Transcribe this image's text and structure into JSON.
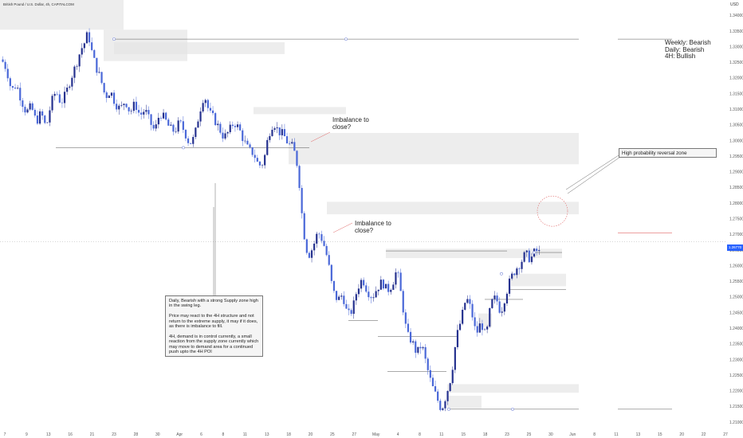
{
  "header": {
    "symbol_line": "British Pound / U.S. Dollar, 4h, CAPITALCOM"
  },
  "currency_label": "USD",
  "current_price": "1.26770",
  "bias_text": "Weekly: Bearish\nDaily: Bearish\n4H: Bullish",
  "imbalance_label_1": "Imbalance to\nclose?",
  "imbalance_label_2": "Imbalance to\nclose?",
  "reversal_label": "High probability reversal zone",
  "analysis_note": "Daily, Bearish with a strong Supply zone high in the swing leg.\n\nPrice may react to the 4H structure and not return to the extreme supply, it may if it does, as there is imbalance to fill.\n\n4H, demand is in control currently, a small reaction from the supply zone currently which may move to demand area for a continued push upto the 4H POI",
  "colors": {
    "up": "#26328f",
    "down": "#4a68d8",
    "zone": "#e4e4e4",
    "circle": "#e06666",
    "accent": "#2962ff"
  },
  "chart_data": {
    "type": "candlestick",
    "title": "British Pound / U.S. Dollar, 4h, CAPITALCOM",
    "ylim": [
      1.205,
      1.345
    ],
    "y_ticks": [
      "1.34000",
      "1.33500",
      "1.33000",
      "1.32500",
      "1.32000",
      "1.31500",
      "1.31000",
      "1.30500",
      "1.30000",
      "1.29500",
      "1.29000",
      "1.28500",
      "1.28000",
      "1.27500",
      "1.27000",
      "1.26500",
      "1.26000",
      "1.25500",
      "1.25000",
      "1.24500",
      "1.24000",
      "1.23500",
      "1.23000",
      "1.22500",
      "1.22000",
      "1.21500",
      "1.21000"
    ],
    "x_ticks": [
      "7",
      "9",
      "13",
      "16",
      "21",
      "23",
      "28",
      "30",
      "Apr",
      "6",
      "8",
      "11",
      "13",
      "18",
      "20",
      "25",
      "27",
      "May",
      "4",
      "8",
      "11",
      "15",
      "18",
      "23",
      "25",
      "30",
      "Jun",
      "8",
      "11",
      "13",
      "15",
      "20",
      "22",
      "27"
    ],
    "close_path": [
      [
        0,
        1.326
      ],
      [
        4,
        1.323
      ],
      [
        8,
        1.316
      ],
      [
        12,
        1.318
      ],
      [
        16,
        1.313
      ],
      [
        20,
        1.309
      ],
      [
        24,
        1.311
      ],
      [
        28,
        1.306
      ],
      [
        32,
        1.309
      ],
      [
        36,
        1.304
      ],
      [
        40,
        1.312
      ],
      [
        44,
        1.316
      ],
      [
        48,
        1.312
      ],
      [
        52,
        1.315
      ],
      [
        56,
        1.32
      ],
      [
        60,
        1.324
      ],
      [
        64,
        1.329
      ],
      [
        68,
        1.332
      ],
      [
        70,
        1.335
      ],
      [
        72,
        1.33
      ],
      [
        76,
        1.324
      ],
      [
        80,
        1.32
      ],
      [
        84,
        1.314
      ],
      [
        88,
        1.316
      ],
      [
        92,
        1.312
      ],
      [
        96,
        1.31
      ],
      [
        100,
        1.313
      ],
      [
        104,
        1.309
      ],
      [
        108,
        1.312
      ],
      [
        112,
        1.308
      ],
      [
        116,
        1.31
      ],
      [
        120,
        1.306
      ],
      [
        124,
        1.303
      ],
      [
        128,
        1.309
      ],
      [
        132,
        1.307
      ],
      [
        136,
        1.304
      ],
      [
        140,
        1.303
      ],
      [
        144,
        1.306
      ],
      [
        148,
        1.303
      ],
      [
        152,
        1.299
      ],
      [
        156,
        1.301
      ],
      [
        160,
        1.309
      ],
      [
        164,
        1.315
      ],
      [
        168,
        1.309
      ],
      [
        172,
        1.307
      ],
      [
        176,
        1.304
      ],
      [
        180,
        1.301
      ],
      [
        184,
        1.303
      ],
      [
        188,
        1.306
      ],
      [
        192,
        1.304
      ],
      [
        196,
        1.3
      ],
      [
        200,
        1.297
      ],
      [
        204,
        1.296
      ],
      [
        208,
        1.292
      ],
      [
        212,
        1.293
      ],
      [
        216,
        1.302
      ],
      [
        220,
        1.306
      ],
      [
        224,
        1.303
      ],
      [
        228,
        1.302
      ],
      [
        232,
        1.299
      ],
      [
        236,
        1.298
      ],
      [
        240,
        1.291
      ],
      [
        244,
        1.272
      ],
      [
        248,
        1.263
      ],
      [
        252,
        1.266
      ],
      [
        256,
        1.271
      ],
      [
        260,
        1.268
      ],
      [
        264,
        1.262
      ],
      [
        268,
        1.252
      ],
      [
        272,
        1.249
      ],
      [
        276,
        1.251
      ],
      [
        280,
        1.244
      ],
      [
        284,
        1.246
      ],
      [
        288,
        1.253
      ],
      [
        292,
        1.256
      ],
      [
        296,
        1.252
      ],
      [
        300,
        1.25
      ],
      [
        304,
        1.253
      ],
      [
        308,
        1.255
      ],
      [
        312,
        1.252
      ],
      [
        316,
        1.254
      ],
      [
        320,
        1.259
      ],
      [
        324,
        1.249
      ],
      [
        328,
        1.238
      ],
      [
        332,
        1.236
      ],
      [
        336,
        1.232
      ],
      [
        340,
        1.235
      ],
      [
        344,
        1.228
      ],
      [
        348,
        1.222
      ],
      [
        352,
        1.218
      ],
      [
        356,
        1.214
      ],
      [
        360,
        1.219
      ],
      [
        364,
        1.225
      ],
      [
        368,
        1.237
      ],
      [
        372,
        1.243
      ],
      [
        376,
        1.25
      ],
      [
        380,
        1.246
      ],
      [
        384,
        1.238
      ],
      [
        388,
        1.242
      ],
      [
        392,
        1.237
      ],
      [
        396,
        1.248
      ],
      [
        400,
        1.25
      ],
      [
        404,
        1.245
      ],
      [
        408,
        1.251
      ],
      [
        412,
        1.256
      ],
      [
        416,
        1.259
      ],
      [
        420,
        1.261
      ],
      [
        424,
        1.264
      ],
      [
        428,
        1.262
      ],
      [
        432,
        1.265
      ],
      [
        436,
        1.264
      ]
    ],
    "zones": [
      {
        "y": [
          1.3465,
          1.3355
        ]
      },
      {
        "y": [
          1.3355,
          1.3255
        ]
      },
      {
        "y": [
          1.3315,
          1.3277
        ]
      },
      {
        "y": [
          1.3108,
          1.3085
        ]
      },
      {
        "y": [
          1.3025,
          1.2925
        ]
      },
      {
        "y": [
          1.2805,
          1.2765
        ]
      },
      {
        "y": [
          1.2655,
          1.2625
        ]
      },
      {
        "y": [
          1.2575,
          1.2535
        ]
      },
      {
        "y": [
          1.2448,
          1.2405
        ]
      },
      {
        "y": [
          1.2222,
          1.2195
        ]
      },
      {
        "y": [
          1.2185,
          1.2145
        ]
      }
    ],
    "levels": [
      1.3325,
      1.2978,
      1.2648,
      1.2524,
      1.2493,
      1.2425,
      1.2375,
      1.2262,
      1.2142
    ]
  }
}
